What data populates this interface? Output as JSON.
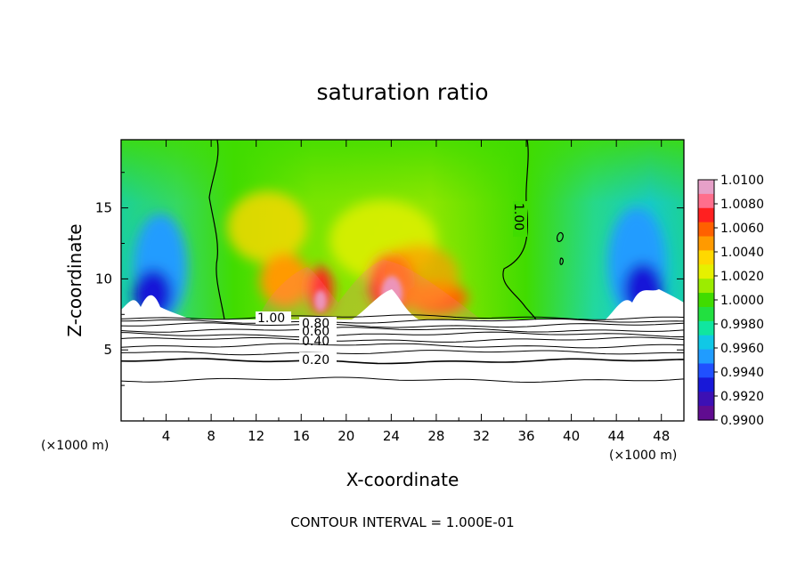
{
  "chart_data": {
    "type": "heatmap",
    "title": "saturation ratio",
    "xlabel": "X-coordinate",
    "ylabel": "Z-coordinate",
    "x_unit": "(×1000 m)",
    "y_unit": "(×1000 m)",
    "xlim": [
      0,
      50
    ],
    "ylim": [
      0,
      19.8
    ],
    "x_ticks": [
      4,
      8,
      12,
      16,
      20,
      24,
      28,
      32,
      36,
      40,
      44,
      48
    ],
    "y_ticks": [
      5,
      10,
      15
    ],
    "grid": false,
    "colorbar": {
      "placement": "right",
      "range": [
        0.99,
        1.01
      ],
      "tick_labels": [
        "1.0100",
        "1.0080",
        "1.0060",
        "1.0040",
        "1.0020",
        "1.0000",
        "0.9980",
        "0.9960",
        "0.9940",
        "0.9920",
        "0.9900"
      ],
      "colors": [
        "#e6a0c8",
        "#ff6e8c",
        "#ff2020",
        "#ff6000",
        "#ff9a00",
        "#ffd800",
        "#e6f000",
        "#9cec00",
        "#40dc00",
        "#22e040",
        "#10e6a0",
        "#10c8e6",
        "#209cff",
        "#2050ff",
        "#1818d8",
        "#3c10b4",
        "#600c90"
      ]
    },
    "contour_lines": {
      "labels": [
        "0.20",
        "0.40",
        "0.60",
        "0.80",
        "1.00",
        "1.00"
      ],
      "levels_below_terrain": [
        0.1,
        0.2,
        0.3,
        0.4,
        0.5,
        0.6,
        0.7,
        0.8,
        0.9,
        1.0
      ],
      "contour_interval": 0.1
    },
    "terrain_top_km": 7.3,
    "note": "CONTOUR INTERVAL = 1.000E-01"
  }
}
